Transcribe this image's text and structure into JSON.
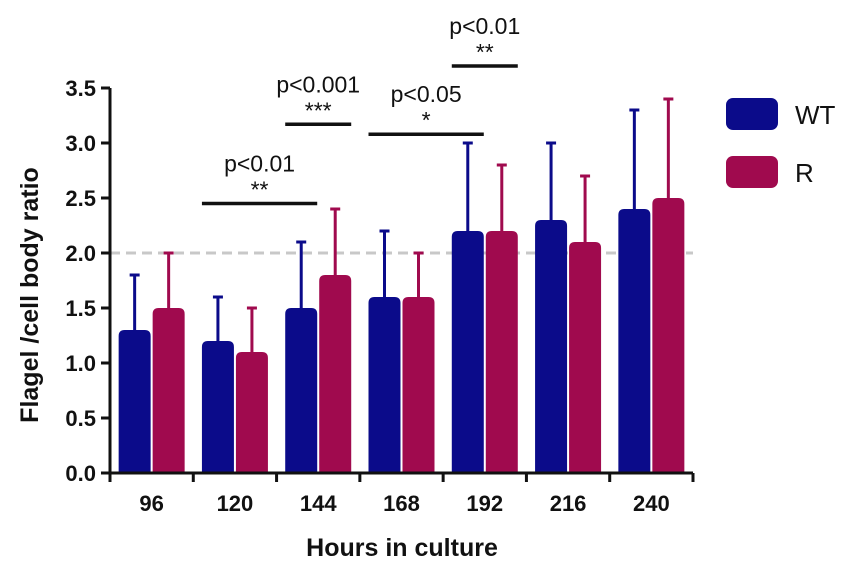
{
  "chart_data": {
    "type": "bar",
    "xlabel": "Hours in culture",
    "ylabel": "Flagel /cell body ratio",
    "ylim": [
      0,
      3.5
    ],
    "yticks": [
      "0.0",
      "0.5",
      "1.0",
      "1.5",
      "2.0",
      "2.5",
      "3.0",
      "3.5"
    ],
    "categories": [
      "96",
      "120",
      "144",
      "168",
      "192",
      "216",
      "240"
    ],
    "series": [
      {
        "name": "WT",
        "color": "#0b0b8a",
        "values": [
          1.3,
          1.2,
          1.5,
          1.6,
          2.2,
          2.3,
          2.4
        ],
        "errors": [
          0.5,
          0.4,
          0.6,
          0.6,
          0.8,
          0.7,
          0.9
        ]
      },
      {
        "name": "R",
        "color": "#a00a4e",
        "values": [
          1.5,
          1.1,
          1.8,
          1.6,
          2.2,
          2.1,
          2.5
        ],
        "errors": [
          0.5,
          0.4,
          0.6,
          0.4,
          0.6,
          0.6,
          0.9
        ]
      }
    ],
    "reference_line": {
      "y": 2.0,
      "style": "dashed",
      "color": "#c8c8c8"
    },
    "legend_position": "top-right",
    "annotations": [
      {
        "label": "p<0.01",
        "stars": "**",
        "from_category": "120",
        "from_series": "WT",
        "to_category": "144",
        "to_series": "WT",
        "y": 2.45
      },
      {
        "label": "p<0.001",
        "stars": "***",
        "from_category": "144",
        "from_series": "WT",
        "to_category": "144",
        "to_series": "R",
        "y": 3.17
      },
      {
        "label": "p<0.05",
        "stars": "*",
        "from_category": "168",
        "from_series": "WT",
        "to_category": "192",
        "to_series": "WT",
        "y": 3.08
      },
      {
        "label": "p<0.01",
        "stars": "**",
        "from_category": "192",
        "from_series": "WT",
        "to_category": "192",
        "to_series": "R",
        "y": 3.7
      }
    ]
  }
}
